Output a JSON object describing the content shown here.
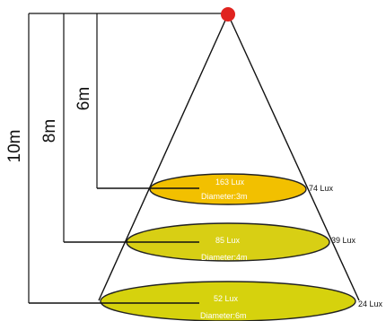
{
  "heights": {
    "h10": "10m",
    "h8": "8m",
    "h6": "6m"
  },
  "rings": [
    {
      "center_lux": "163 Lux",
      "diameter": "Diameter:3m",
      "edge_lux": "74 Lux"
    },
    {
      "center_lux": "85 Lux",
      "diameter": "Diameter:4m",
      "edge_lux": "39 Lux"
    },
    {
      "center_lux": "52 Lux",
      "diameter": "Diameter:6m",
      "edge_lux": "24 Lux"
    }
  ],
  "colors": {
    "light_source": "#e0231f",
    "ring_top": "#f2c000",
    "ring_middle": "#d8cf14",
    "ring_bottom": "#d6d20d",
    "ring_outline": "#222222",
    "lines": "#111111"
  }
}
